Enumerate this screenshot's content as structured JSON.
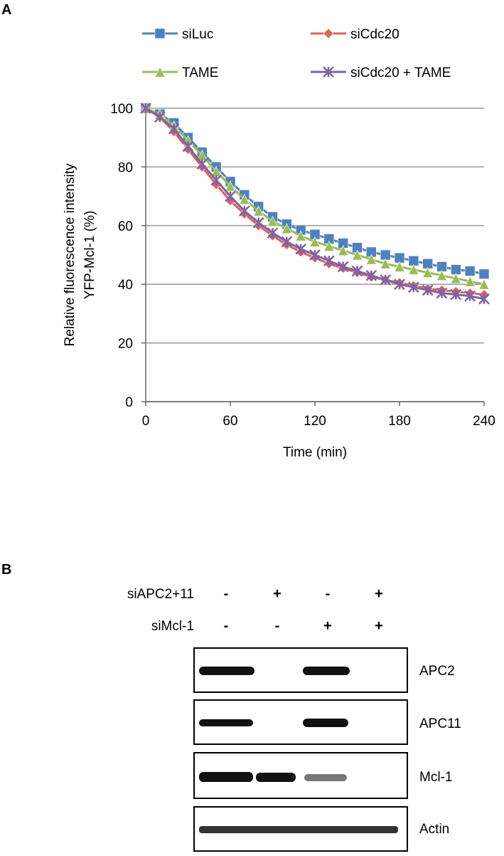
{
  "panel_a_label": "A",
  "panel_b_label": "B",
  "chart_data": {
    "type": "line",
    "xlabel": "Time (min)",
    "ylabel": [
      "Relative fluorescence intensity",
      "YFP-Mcl-1 (%)"
    ],
    "x": [
      0,
      10,
      20,
      30,
      40,
      50,
      60,
      70,
      80,
      90,
      100,
      110,
      120,
      130,
      140,
      150,
      160,
      170,
      180,
      190,
      200,
      210,
      220,
      230,
      240
    ],
    "xlim": [
      0,
      240
    ],
    "xticks": [
      0,
      60,
      120,
      180,
      240
    ],
    "ylim": [
      0,
      100
    ],
    "yticks": [
      0,
      20,
      40,
      60,
      80,
      100
    ],
    "grid": true,
    "series": [
      {
        "name": "siLuc",
        "color": "#4f81bd",
        "marker": "square",
        "values": [
          100,
          98,
          95,
          90,
          85,
          80,
          75,
          70.5,
          66.5,
          63,
          60.5,
          58.5,
          57,
          55.5,
          54,
          52.5,
          51,
          50,
          49,
          48,
          47,
          46,
          45,
          44.5,
          43.5
        ]
      },
      {
        "name": "siCdc20",
        "color": "#e0605c",
        "marker": "diamond",
        "values": [
          100,
          97,
          92,
          86,
          80,
          74,
          68.5,
          64,
          60,
          56.5,
          53.5,
          51,
          49,
          47,
          45.5,
          44,
          42.5,
          41.5,
          40.5,
          39.5,
          38.5,
          38,
          37.5,
          37,
          36.5
        ]
      },
      {
        "name": "TAME",
        "color": "#9bbb59",
        "marker": "triangle",
        "values": [
          100,
          98,
          94,
          89,
          84,
          78.5,
          73.5,
          69,
          65,
          61.5,
          59,
          56.5,
          54.5,
          53,
          51.5,
          50,
          48.5,
          47,
          46,
          45,
          44,
          43,
          42,
          41,
          40
        ]
      },
      {
        "name": "siCdc20 + TAME",
        "color": "#8064a2",
        "marker": "asterisk",
        "values": [
          100,
          97,
          93,
          87,
          81,
          75.5,
          70,
          65,
          61,
          57.5,
          54.5,
          52,
          50,
          48,
          46,
          44.5,
          43,
          41.5,
          40,
          39,
          38,
          37,
          36.5,
          36,
          35
        ]
      }
    ]
  },
  "blot": {
    "conditions": [
      {
        "label": "siAPC2+11",
        "signs": [
          "-",
          "+",
          "-",
          "+"
        ]
      },
      {
        "label": "siMcl-1",
        "signs": [
          "-",
          "-",
          "+",
          "+"
        ]
      }
    ],
    "rows": [
      "APC2",
      "APC11",
      "Mcl-1",
      "Actin"
    ]
  }
}
